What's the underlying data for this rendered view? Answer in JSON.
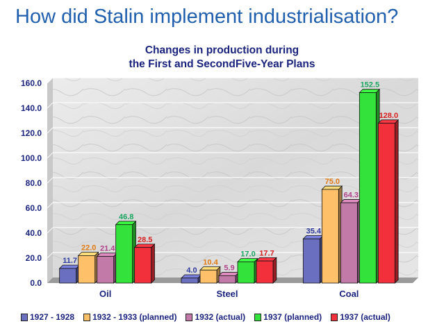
{
  "slide": {
    "title": "How did Stalin implement industrialisation?"
  },
  "chart_data": {
    "type": "bar",
    "title_line1": "Changes in production during",
    "title_line2": "the First and SecondFive-Year Plans",
    "categories": [
      "Oil",
      "Steel",
      "Coal"
    ],
    "series": [
      {
        "name": "1927 - 1928",
        "values": [
          11.7,
          4.0,
          35.4
        ],
        "color": "#6a6fc0",
        "label_color": "#2f3aa0"
      },
      {
        "name": "1932 - 1933 (planned)",
        "values": [
          22.0,
          10.4,
          75.0
        ],
        "color": "#ffc06a",
        "label_color": "#e07a10"
      },
      {
        "name": "1932 (actual)",
        "values": [
          21.4,
          5.9,
          64.3
        ],
        "color": "#c27aa8",
        "label_color": "#b0428a"
      },
      {
        "name": "1937 (planned)",
        "values": [
          46.8,
          17.0,
          152.5
        ],
        "color": "#33e23a",
        "label_color": "#1aa560"
      },
      {
        "name": "1937 (actual)",
        "values": [
          28.5,
          17.7,
          128.0
        ],
        "color": "#f2303c",
        "label_color": "#d81e1e"
      }
    ],
    "value_labels": [
      [
        "11.7",
        "4.0",
        "35.4"
      ],
      [
        "22.0",
        "10.4",
        "75.0"
      ],
      [
        "21.4",
        "5.9",
        "64.3"
      ],
      [
        "46.8",
        "17.0",
        "152.5"
      ],
      [
        "28.5",
        "17.7",
        "128.0"
      ]
    ],
    "ylim": [
      0,
      160
    ],
    "yticks": [
      "0.0",
      "20.0",
      "40.0",
      "60.0",
      "80.0",
      "100.0",
      "120.0",
      "140.0",
      "160.0"
    ],
    "grid": true,
    "legend_position": "bottom"
  }
}
